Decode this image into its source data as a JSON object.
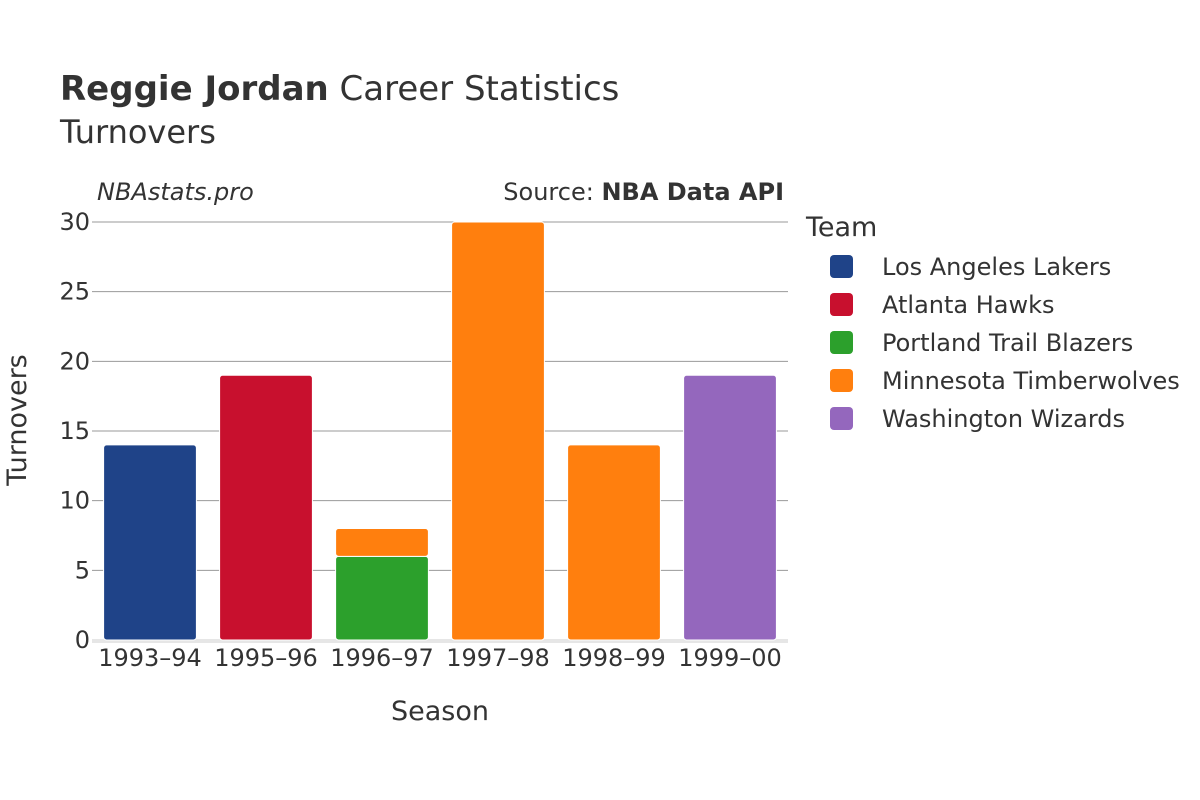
{
  "chart_data": {
    "type": "bar",
    "stacked": true,
    "title_bold": "Reggie Jordan",
    "title_rest": " Career Statistics",
    "subtitle": "Turnovers",
    "watermark": "NBAstats.pro",
    "source_label": "Source: ",
    "source_name": "NBA Data API",
    "xlabel": "Season",
    "ylabel": "Turnovers",
    "ylim": [
      0,
      30
    ],
    "yticks": [
      0,
      5,
      10,
      15,
      20,
      25,
      30
    ],
    "grid": true,
    "categories": [
      "1993–94",
      "1995–96",
      "1996–97",
      "1997–98",
      "1998–99",
      "1999–00"
    ],
    "legend_title": "Team",
    "legend_position": "right",
    "series": [
      {
        "name": "Los Angeles Lakers",
        "color": "#1f4388",
        "values": [
          14,
          0,
          0,
          0,
          0,
          0
        ]
      },
      {
        "name": "Atlanta Hawks",
        "color": "#c8102e",
        "values": [
          0,
          19,
          0,
          0,
          0,
          0
        ]
      },
      {
        "name": "Portland Trail Blazers",
        "color": "#2ca02c",
        "values": [
          0,
          0,
          6,
          0,
          0,
          0
        ]
      },
      {
        "name": "Minnesota Timberwolves",
        "color": "#ff7f0e",
        "values": [
          0,
          0,
          2,
          30,
          14,
          0
        ]
      },
      {
        "name": "Washington Wizards",
        "color": "#9467bd",
        "values": [
          0,
          0,
          0,
          0,
          0,
          19
        ]
      }
    ]
  }
}
